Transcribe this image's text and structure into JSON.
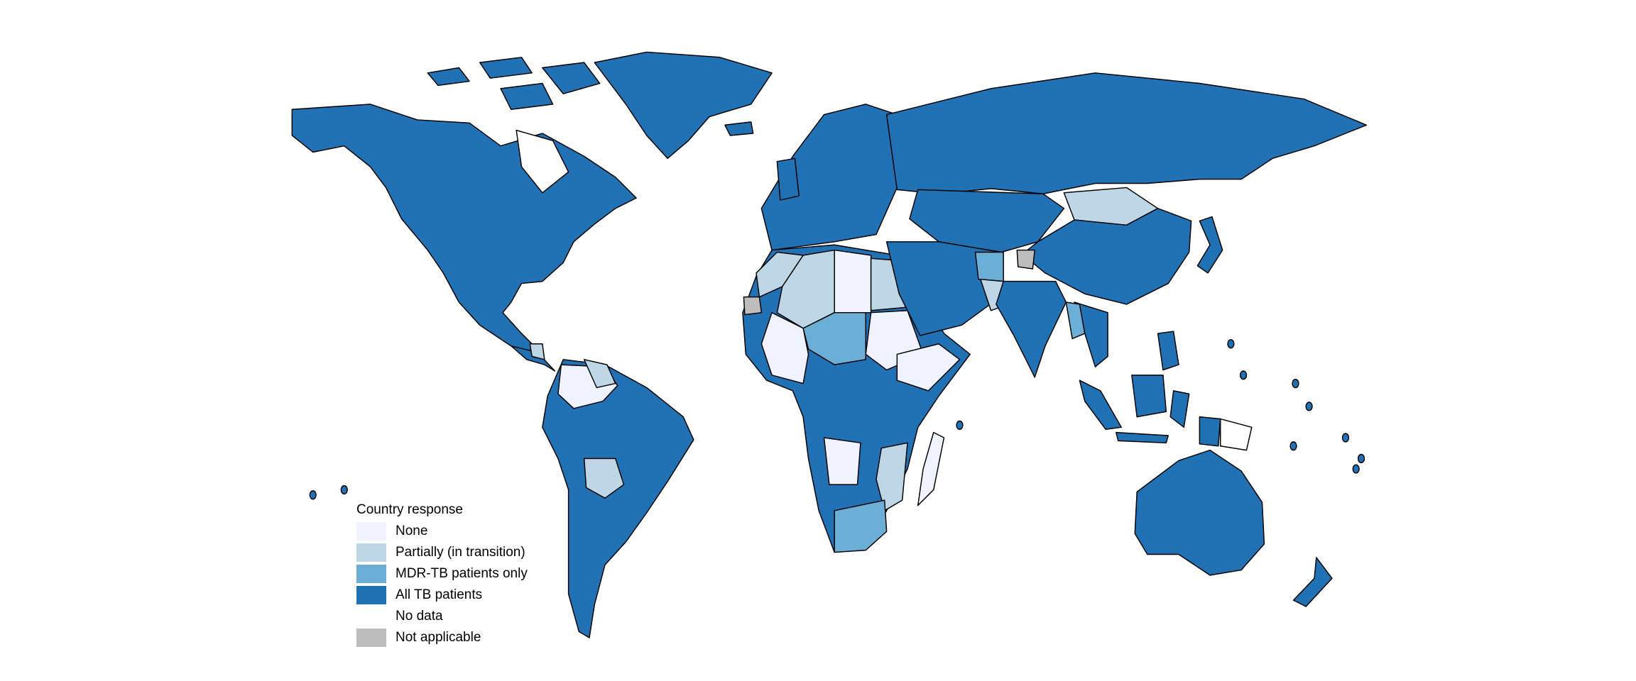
{
  "legend": {
    "title": "Country response",
    "items": [
      {
        "label": "None",
        "color": "#eff3ff",
        "key": "none"
      },
      {
        "label": "Partially (in transition)",
        "color": "#bdd7e7",
        "key": "partial"
      },
      {
        "label": "MDR-TB patients only",
        "color": "#6baed6",
        "key": "mdr"
      },
      {
        "label": "All TB patients",
        "color": "#2171b5",
        "key": "all"
      },
      {
        "label": "No data",
        "color": "#ffffff",
        "key": "nodata"
      },
      {
        "label": "Not applicable",
        "color": "#bdbdbd",
        "key": "na"
      }
    ]
  }
}
